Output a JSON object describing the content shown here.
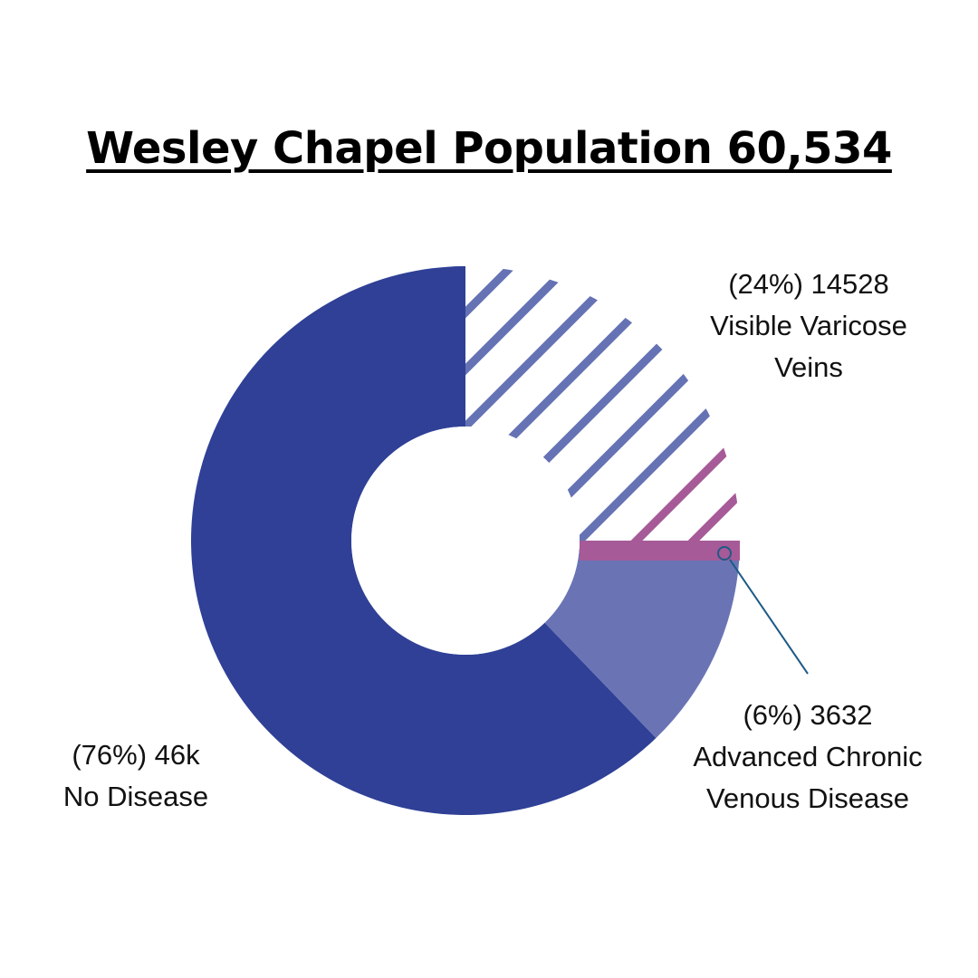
{
  "title": "Wesley Chapel Population 60,534",
  "colors": {
    "no_disease": "#2f4096",
    "visible_varicose_veins_stripe": "#6572b4",
    "advanced_cvd": "#6a74b5",
    "advanced_cvd_highlight": "#a65a98",
    "leader_line": "#1e5a86",
    "background": "#ffffff"
  },
  "labels": {
    "visible_varicose_veins": {
      "line1": "(24%) 14528",
      "line2": "Visible Varicose",
      "line3": "Veins"
    },
    "advanced_cvd": {
      "line1": "(6%) 3632",
      "line2": "Advanced Chronic",
      "line3": "Venous Disease"
    },
    "no_disease": {
      "line1": "(76%) 46k",
      "line2": "No Disease"
    }
  },
  "chart_data": {
    "type": "pie",
    "variant": "donut",
    "title": "Wesley Chapel Population 60,534",
    "slices": [
      {
        "label": "Visible Varicose Veins",
        "value": 14528,
        "percent": 24,
        "fill": "hatched"
      },
      {
        "label": "Advanced Chronic Venous Disease",
        "value": 3632,
        "percent": 6,
        "fill": "solid"
      },
      {
        "label": "No Disease",
        "value": 46000,
        "percent": 76,
        "fill": "solid"
      }
    ],
    "legend": "none"
  }
}
